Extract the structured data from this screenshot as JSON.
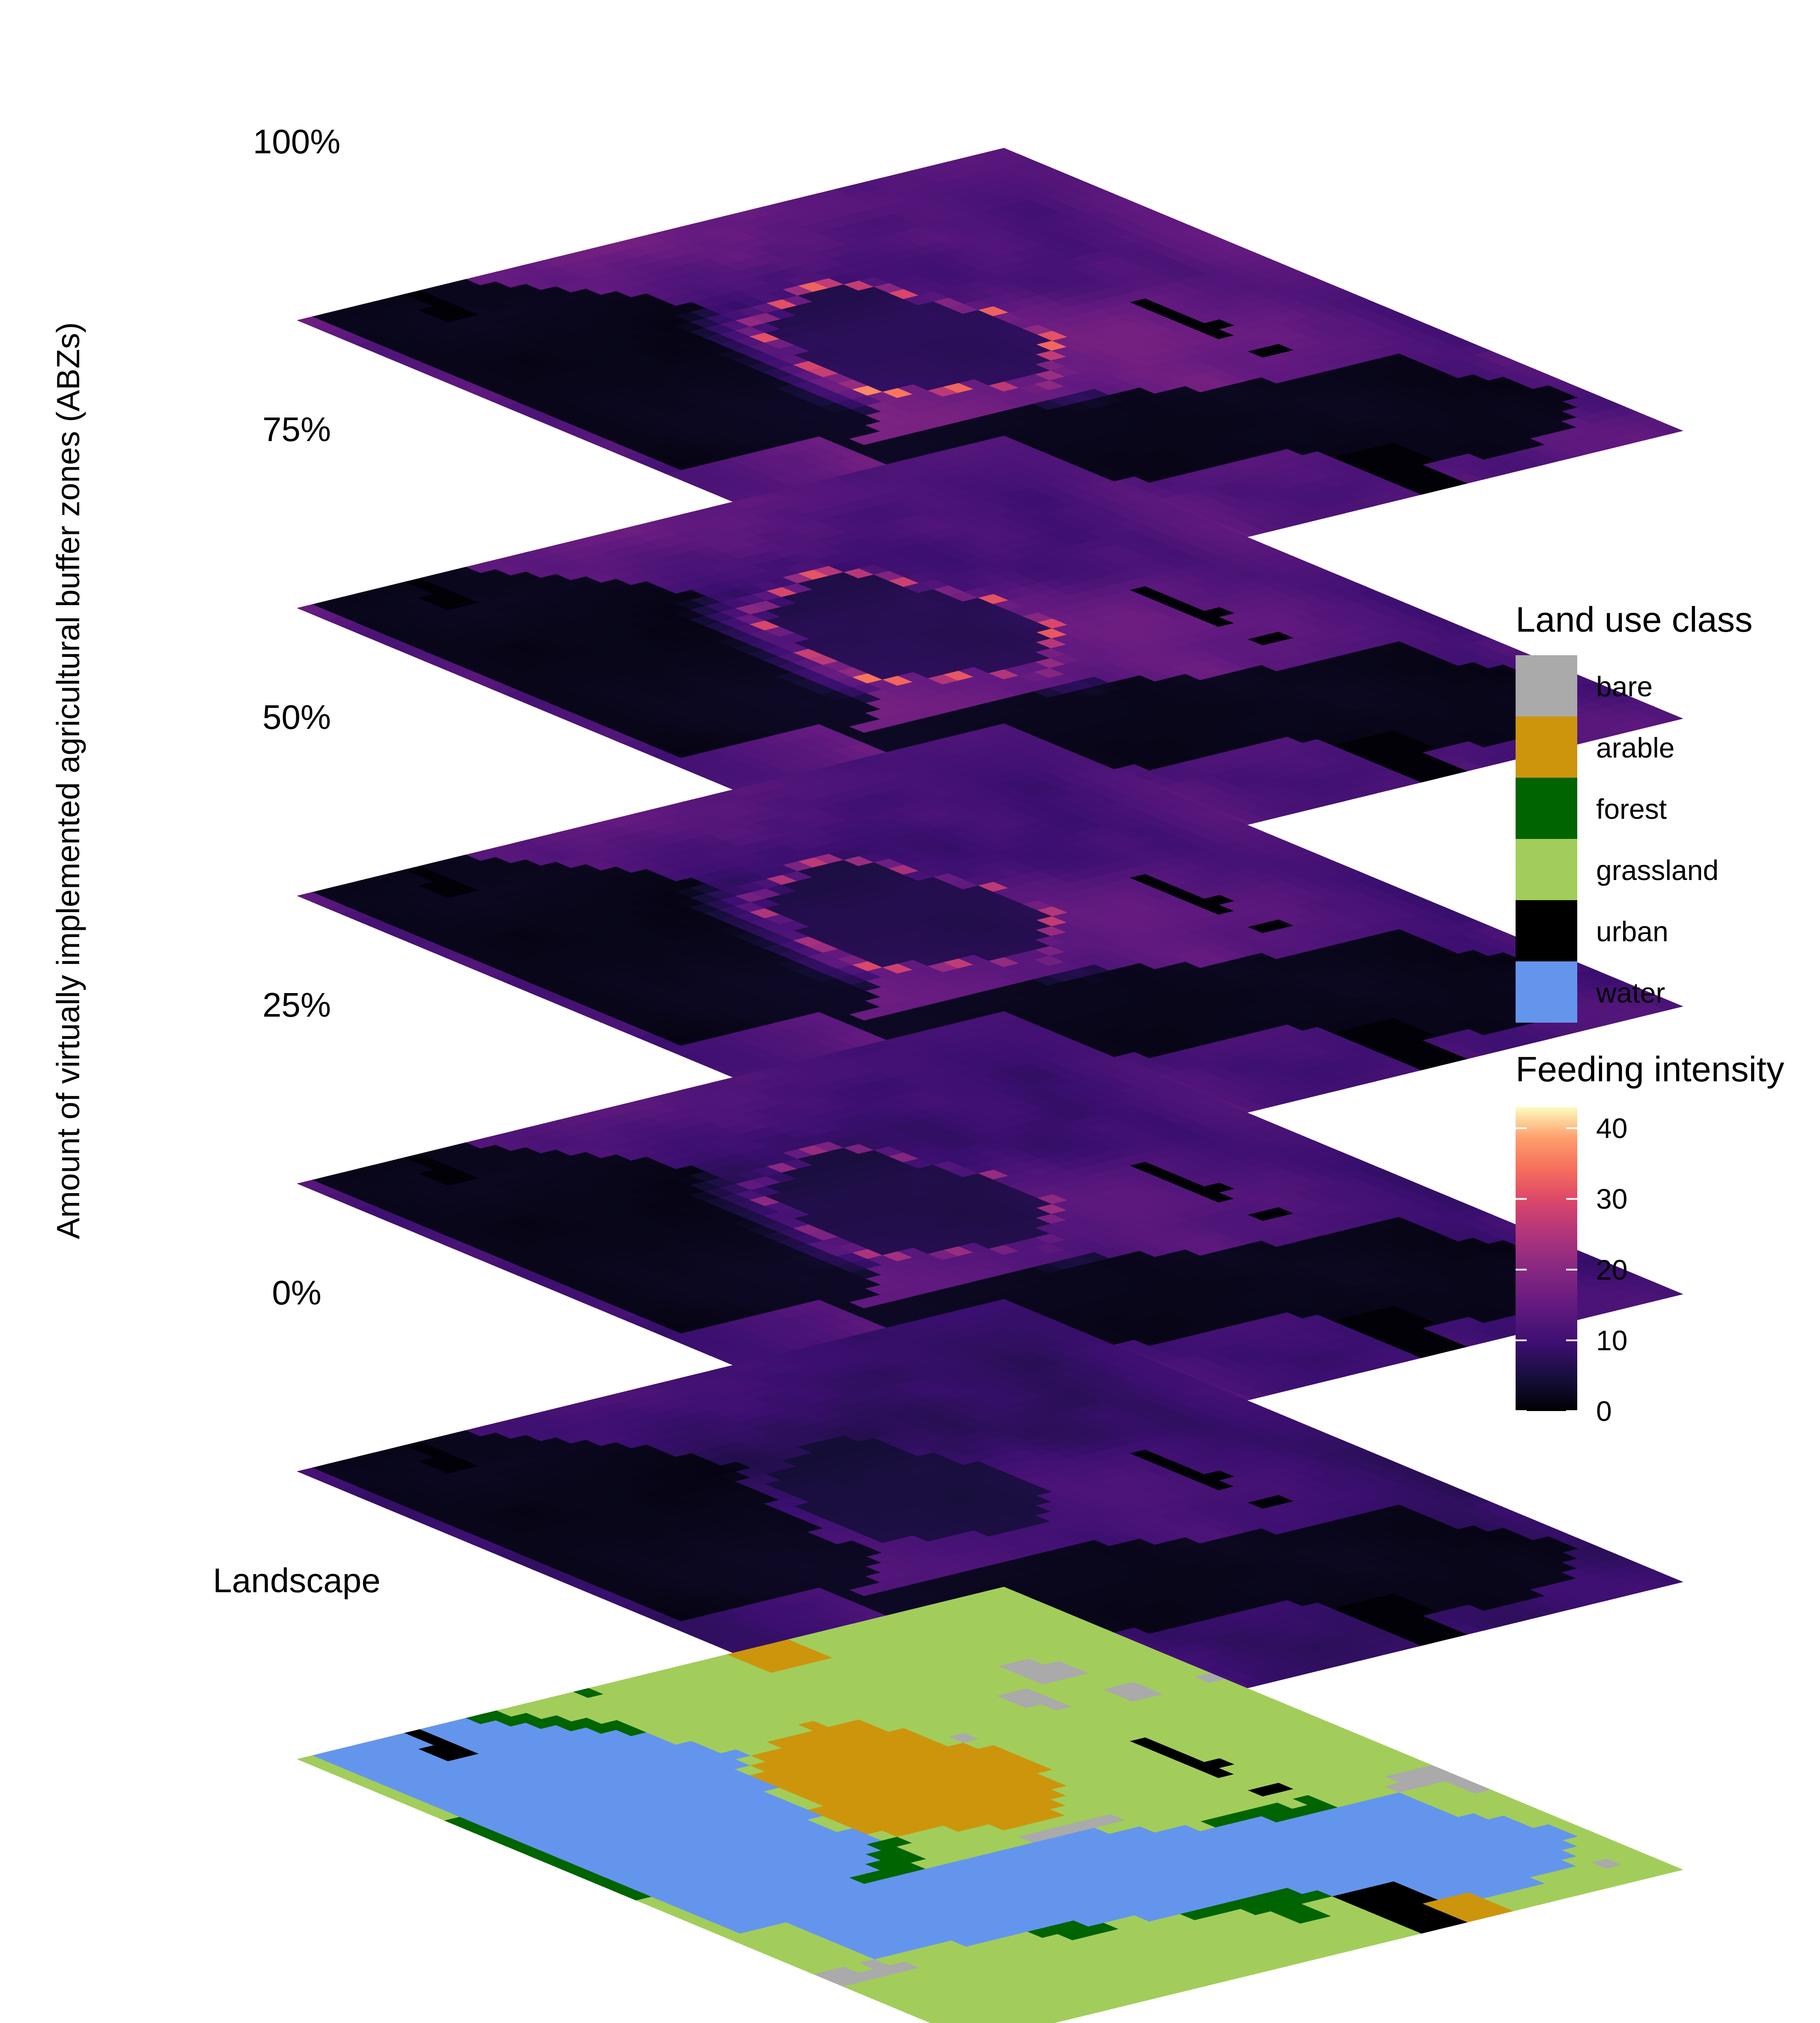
{
  "chart_data": {
    "type": "heatmap",
    "title": "",
    "ylabel": "Amount of virtually implemented agricultural buffer zones (ABZs)",
    "layers": [
      {
        "label": "100%",
        "kind": "intensity",
        "ring_intensity": 42,
        "outer_intensity": 16
      },
      {
        "label": "75%",
        "kind": "intensity",
        "ring_intensity": 40,
        "outer_intensity": 15
      },
      {
        "label": "50%",
        "kind": "intensity",
        "ring_intensity": 34,
        "outer_intensity": 14
      },
      {
        "label": "25%",
        "kind": "intensity",
        "ring_intensity": 28,
        "outer_intensity": 13
      },
      {
        "label": "0%",
        "kind": "intensity",
        "ring_intensity": 6,
        "outer_intensity": 11
      },
      {
        "label": "Landscape",
        "kind": "landuse"
      }
    ],
    "legend_landuse": {
      "title": "Land use class",
      "placement": "right",
      "items": [
        {
          "label": "bare",
          "color": "#aaaaaa"
        },
        {
          "label": "arable",
          "color": "#cd950c"
        },
        {
          "label": "forest",
          "color": "#006400"
        },
        {
          "label": "grassland",
          "color": "#a2cd5a"
        },
        {
          "label": "urban",
          "color": "#000000"
        },
        {
          "label": "water",
          "color": "#6495ed"
        }
      ]
    },
    "legend_intensity": {
      "title": "Feeding intensity",
      "placement": "right",
      "ticks": [
        0,
        10,
        20,
        30,
        40
      ],
      "range": [
        0,
        43
      ],
      "colormap": "magma"
    }
  }
}
